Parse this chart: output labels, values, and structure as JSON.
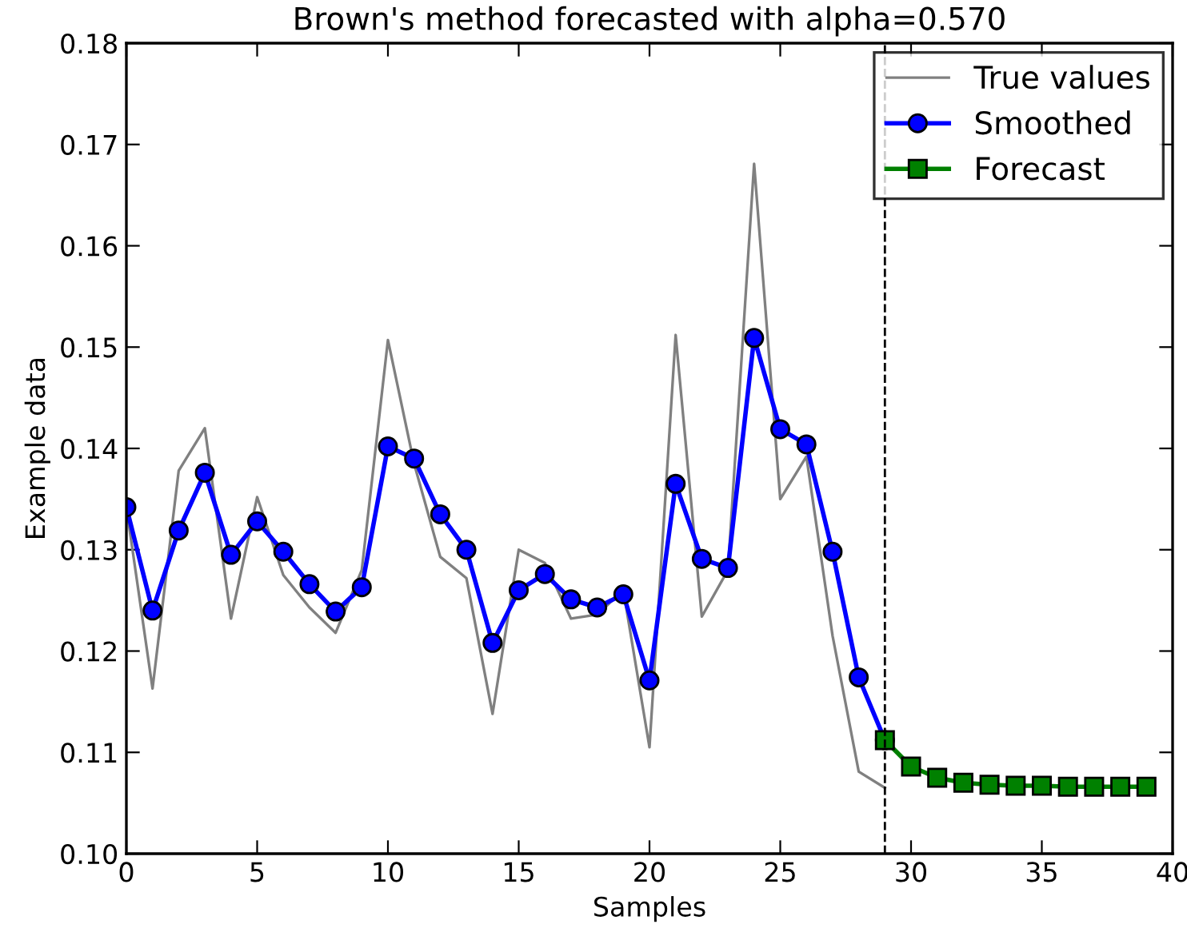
{
  "chart_data": {
    "type": "line",
    "title": "Brown's method forecasted with alpha=0.570",
    "xlabel": "Samples",
    "ylabel": "Example data",
    "series": [
      {
        "name": "True values",
        "color": "#808080",
        "marker": "none",
        "x": [
          0,
          1,
          2,
          3,
          4,
          5,
          6,
          7,
          8,
          9,
          10,
          11,
          12,
          13,
          14,
          15,
          16,
          17,
          18,
          19,
          20,
          21,
          22,
          23,
          24,
          25,
          26,
          27,
          28,
          29
        ],
        "values": [
          0.1342,
          0.1163,
          0.1378,
          0.142,
          0.1232,
          0.1352,
          0.1275,
          0.1243,
          0.1218,
          0.128,
          0.1507,
          0.1385,
          0.1293,
          0.1272,
          0.1138,
          0.13,
          0.1287,
          0.1232,
          0.1236,
          0.126,
          0.1105,
          0.1512,
          0.1234,
          0.128,
          0.1681,
          0.135,
          0.1392,
          0.1215,
          0.1081,
          0.1065
        ]
      },
      {
        "name": "Smoothed",
        "color": "#0000ff",
        "marker": "circle",
        "x": [
          0,
          1,
          2,
          3,
          4,
          5,
          6,
          7,
          8,
          9,
          10,
          11,
          12,
          13,
          14,
          15,
          16,
          17,
          18,
          19,
          20,
          21,
          22,
          23,
          24,
          25,
          26,
          27,
          28,
          29
        ],
        "values": [
          0.1342,
          0.124,
          0.1319,
          0.1376,
          0.1295,
          0.1328,
          0.1298,
          0.1266,
          0.1239,
          0.1263,
          0.1402,
          0.139,
          0.1335,
          0.13,
          0.1208,
          0.126,
          0.1276,
          0.1251,
          0.1243,
          0.1256,
          0.1171,
          0.1365,
          0.1291,
          0.1282,
          0.1509,
          0.1419,
          0.1404,
          0.1298,
          0.1174,
          0.1112
        ]
      },
      {
        "name": "Forecast",
        "color": "#008000",
        "marker": "square",
        "x": [
          29,
          30,
          31,
          32,
          33,
          34,
          35,
          36,
          37,
          38,
          39
        ],
        "values": [
          0.1112,
          0.1086,
          0.1075,
          0.107,
          0.1068,
          0.1067,
          0.1067,
          0.1066,
          0.1066,
          0.1066,
          0.1066
        ]
      }
    ],
    "ref_lines": [
      {
        "axis": "x",
        "value": 29,
        "label": null,
        "color": "#000000",
        "line_style": "dashed"
      }
    ],
    "xlim": [
      0,
      40
    ],
    "xticks": [
      0,
      5,
      10,
      15,
      20,
      25,
      30,
      35,
      40
    ],
    "ylim": [
      0.1,
      0.18
    ],
    "yticks": [
      {
        "value": 0.1,
        "label": "0.10"
      },
      0.11,
      0.12,
      0.13,
      0.14,
      0.15,
      0.16,
      0.17,
      0.18
    ],
    "grid": false,
    "legend": "top right",
    "line_style": "solid"
  }
}
